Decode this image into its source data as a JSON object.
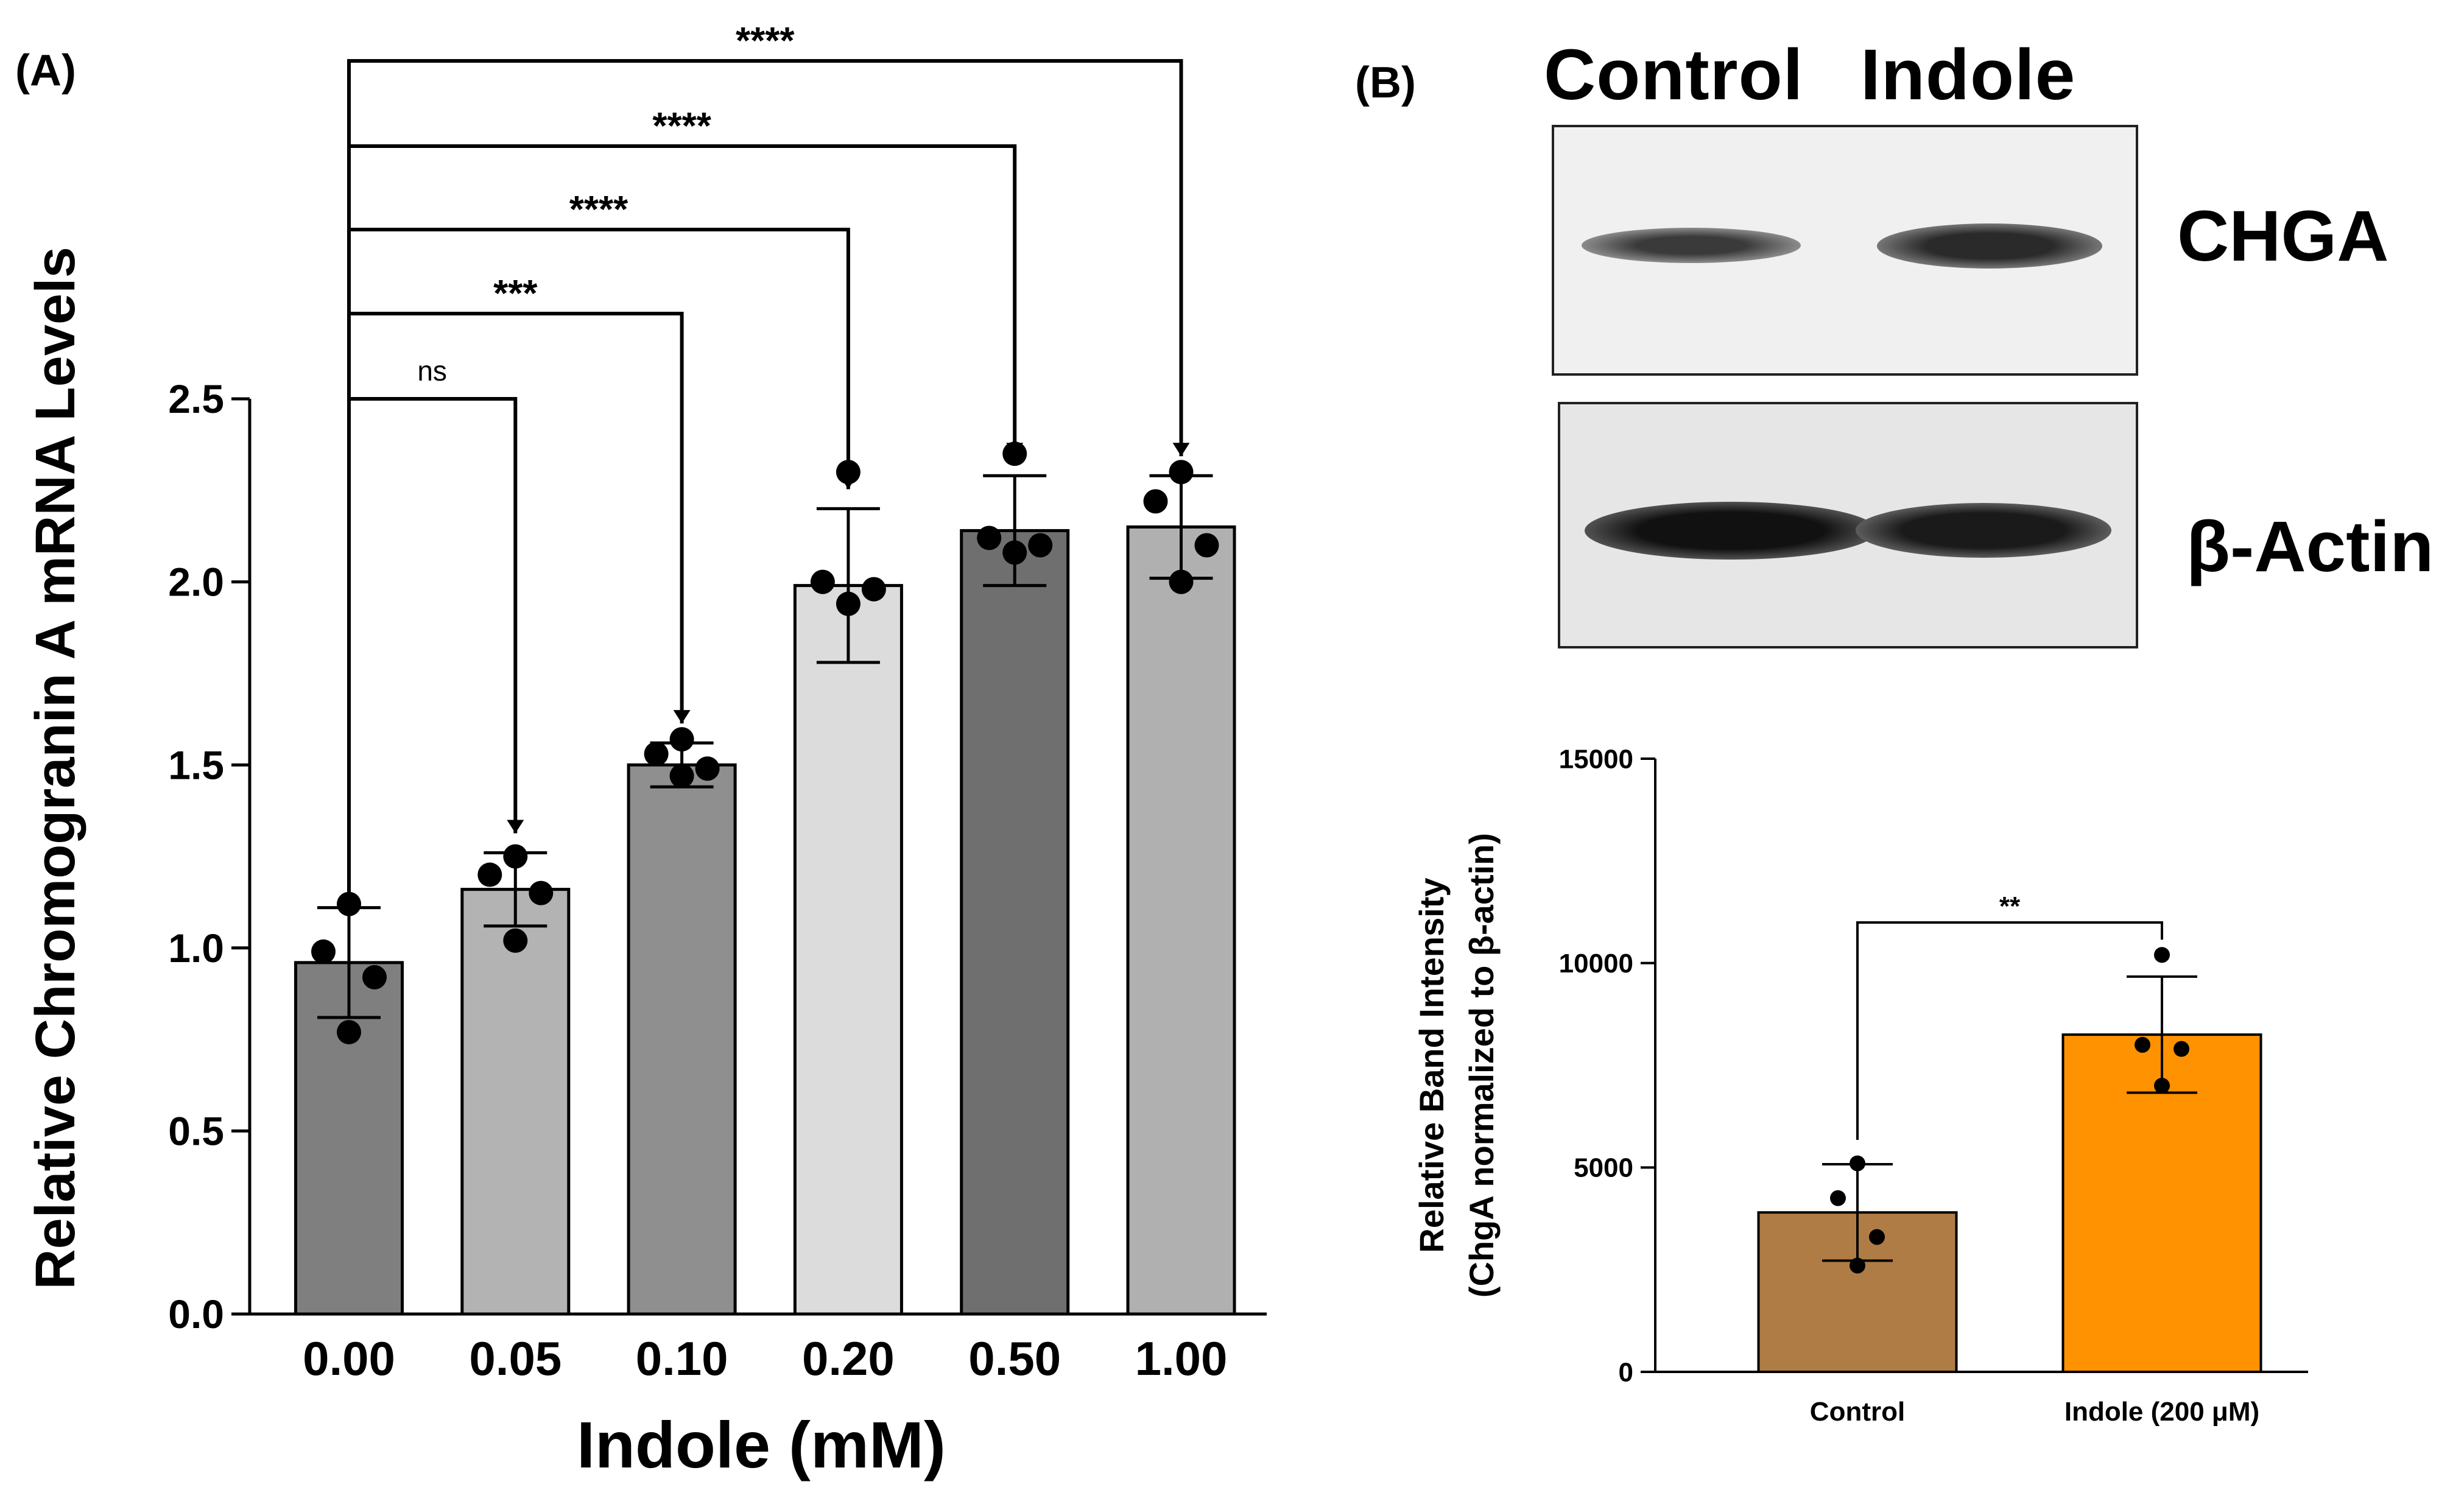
{
  "panels": {
    "a_label": "(A)",
    "b_label": "(B)"
  },
  "blot": {
    "lane_labels": [
      "Control",
      "Indole"
    ],
    "protein_labels": [
      "CHGA",
      "β-Actin"
    ]
  },
  "chart_data": [
    {
      "type": "bar",
      "title": "",
      "xlabel": "Indole (mM)",
      "ylabel": "Relative Chromogranin A mRNA Levels",
      "categories": [
        "0.00",
        "0.05",
        "0.10",
        "0.20",
        "0.50",
        "1.00"
      ],
      "values": [
        0.96,
        1.16,
        1.5,
        1.99,
        2.14,
        2.15
      ],
      "sd": [
        0.15,
        0.1,
        0.06,
        0.21,
        0.15,
        0.14
      ],
      "points": [
        [
          1.12,
          0.99,
          0.92,
          0.77
        ],
        [
          1.25,
          1.2,
          1.15,
          1.02
        ],
        [
          1.57,
          1.53,
          1.49,
          1.47
        ],
        [
          2.3,
          2.0,
          1.98,
          1.94
        ],
        [
          2.35,
          2.12,
          2.1,
          2.08
        ],
        [
          2.3,
          2.22,
          2.1,
          2.0
        ]
      ],
      "bar_colors": [
        "#7f7f7f",
        "#b3b3b3",
        "#8f8f8f",
        "#dcdcdc",
        "#6f6f6f",
        "#b0b0b0"
      ],
      "ylim": [
        0,
        2.5
      ],
      "yticks": [
        "0.0",
        "0.5",
        "1.0",
        "1.5",
        "2.0",
        "2.5"
      ],
      "comparisons": [
        {
          "from": "0.00",
          "to": "0.05",
          "label": "ns"
        },
        {
          "from": "0.00",
          "to": "0.10",
          "label": "***"
        },
        {
          "from": "0.00",
          "to": "0.20",
          "label": "****"
        },
        {
          "from": "0.00",
          "to": "0.50",
          "label": "****"
        },
        {
          "from": "0.00",
          "to": "1.00",
          "label": "****"
        }
      ]
    },
    {
      "type": "bar",
      "title": "",
      "xlabel": "",
      "ylabel": [
        "Relative Band Intensity",
        "(ChgA normalized to β-actin)"
      ],
      "categories": [
        "Control",
        "Indole (200 μM)"
      ],
      "values": [
        3900,
        8250
      ],
      "sd": [
        1180,
        1420
      ],
      "points": [
        [
          5100,
          4250,
          3300,
          2600
        ],
        [
          10200,
          8000,
          7900,
          7000
        ]
      ],
      "bar_colors": [
        "#b07c45",
        "#ff9200"
      ],
      "ylim": [
        0,
        15000
      ],
      "yticks": [
        "0",
        "5000",
        "10000",
        "15000"
      ],
      "comparisons": [
        {
          "from": "Control",
          "to": "Indole (200 μM)",
          "label": "**"
        }
      ]
    }
  ]
}
